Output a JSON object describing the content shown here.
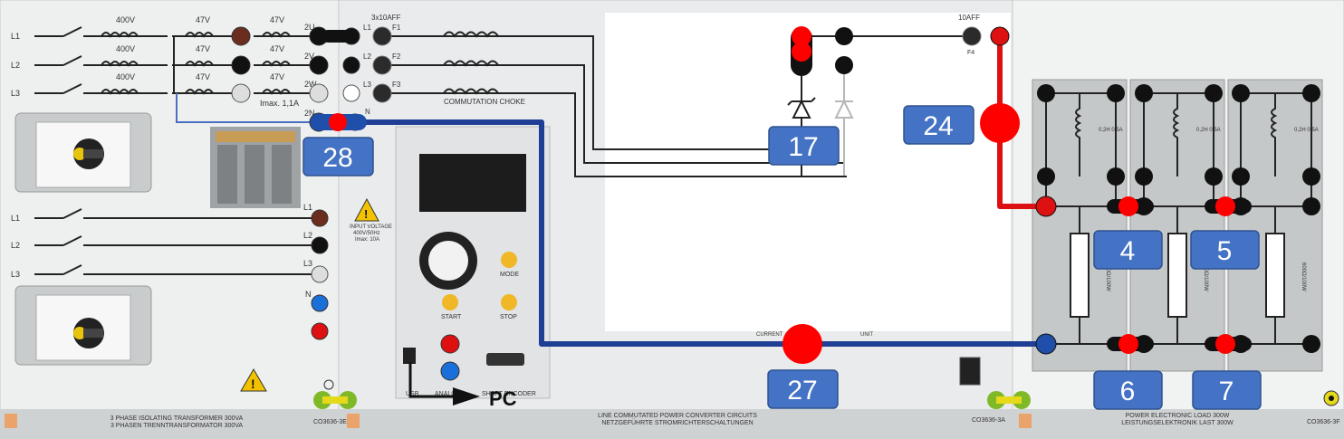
{
  "panels": {
    "transformer": {
      "line_labels_top": [
        "L1",
        "L2",
        "L3"
      ],
      "coil_400v": [
        "400V",
        "400V",
        "400V"
      ],
      "coil_47v_primary": [
        "47V",
        "47V",
        "47V"
      ],
      "coil_47v_secondary": [
        "47V",
        "47V",
        "47V"
      ],
      "terminals_out": [
        "2U",
        "2V",
        "2W",
        "2N"
      ],
      "imax": "Imax. 1,1A",
      "line_labels_bottom": [
        "L1",
        "L2",
        "L3"
      ],
      "terminals_right": [
        "L1",
        "L2",
        "L3",
        "N"
      ],
      "title_en": "3 PHASE ISOLATING TRANSFORMER 300VA",
      "title_de": "3 PHASEN TRENNTRANSFORMATOR 300VA",
      "code": "CO3636-3E"
    },
    "converter": {
      "fuse_label": "3x10AFF",
      "fuse_tags": [
        "F1",
        "F2",
        "F3"
      ],
      "input_tags": [
        "L1",
        "L2",
        "L3",
        "N"
      ],
      "choke_label": "COMMUTATION\nCHOKE",
      "input_voltage": [
        "INPUT VOLTAGE",
        "400V/50Hz",
        "Imax: 10A"
      ],
      "buttons": {
        "mode": "MODE",
        "start": "START",
        "stop": "STOP"
      },
      "usb": "USB",
      "analog": "ANALOG",
      "shaft_encoder": "SHAFT ENCODER",
      "pc_label": "PC",
      "fuse4_label": "10AFF",
      "fuse4_tag": "F4",
      "current_label": "CURRENT",
      "unit_label": "UNIT",
      "code_right": "CO3636-3A??",
      "title_en": "LINE COMMUTATED POWER CONVERTER CIRCUITS",
      "title_de": "NETZGEFÜHRTE STROMRICHTERSCHALTUNGEN",
      "code": "CO3636-3A"
    },
    "load": {
      "inductor_labels": [
        "0,2H\n0,5A",
        "0,2H\n0,5A",
        "0,2H\n0,5A"
      ],
      "resistor_labels": [
        "600Ω/100W",
        "600Ω/100W",
        "600Ω/100W"
      ],
      "title_en": "POWER ELECTRONIC LOAD 300W",
      "title_de": "LEISTUNGSELEKTRONIK LAST 300W",
      "code": "CO3636-3F"
    }
  },
  "badges": [
    "28",
    "17",
    "24",
    "4",
    "5",
    "6",
    "7",
    "27"
  ],
  "colors": {
    "wire_red": "#dd1111",
    "wire_blue": "#1f3f95",
    "badge_fill": "#4472c4",
    "marker_red": "#ff0000"
  },
  "icons": [
    "warning-icon",
    "ground-icon",
    "rotary-knob-icon",
    "usb-port-icon",
    "ce-mark-icon",
    "ln-logo-icon"
  ]
}
